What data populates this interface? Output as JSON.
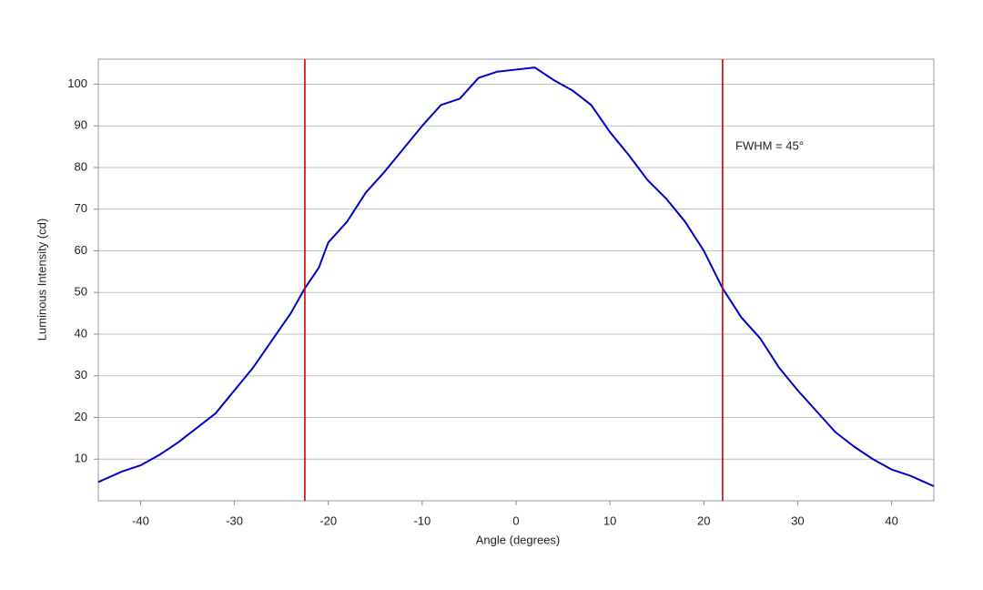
{
  "chart_data": {
    "type": "line",
    "xlabel": "Angle (degrees)",
    "ylabel": "Luminous Intensity (cd)",
    "annotation": "FWHM = 45°",
    "x": [
      -44.5,
      -42,
      -40,
      -38,
      -36,
      -34,
      -32,
      -30,
      -28,
      -26,
      -24,
      -22.5,
      -21,
      -20,
      -18,
      -16,
      -14,
      -12,
      -10,
      -8,
      -6,
      -4,
      -2,
      0,
      2,
      4,
      6,
      8,
      10,
      12,
      14,
      16,
      18,
      20,
      22,
      24,
      26,
      28,
      30,
      32,
      34,
      36,
      38,
      40,
      42,
      44.5
    ],
    "series": [
      {
        "color": "#0000cc",
        "values": [
          4.5,
          7,
          8.5,
          11,
          14,
          17.5,
          21,
          26.5,
          32,
          38.5,
          45,
          51,
          56,
          62,
          67,
          74,
          79,
          84.5,
          90,
          95,
          96.5,
          101.5,
          103,
          103.5,
          104,
          101,
          98.5,
          95,
          88.5,
          83,
          77,
          72.5,
          67,
          60,
          51,
          44,
          39,
          32,
          26.5,
          21.5,
          16.5,
          13,
          10,
          7.5,
          6,
          3.5
        ]
      }
    ],
    "vlines": [
      -22.5,
      22
    ],
    "vline_color": "#cc0000",
    "xlim": [
      -44.5,
      44.5
    ],
    "ylim": [
      0,
      106
    ],
    "xticks": [
      -40,
      -30,
      -20,
      -10,
      0,
      10,
      20,
      30,
      40
    ],
    "yticks": [
      10,
      20,
      30,
      40,
      50,
      60,
      70,
      80,
      90,
      100
    ],
    "grid": true
  }
}
